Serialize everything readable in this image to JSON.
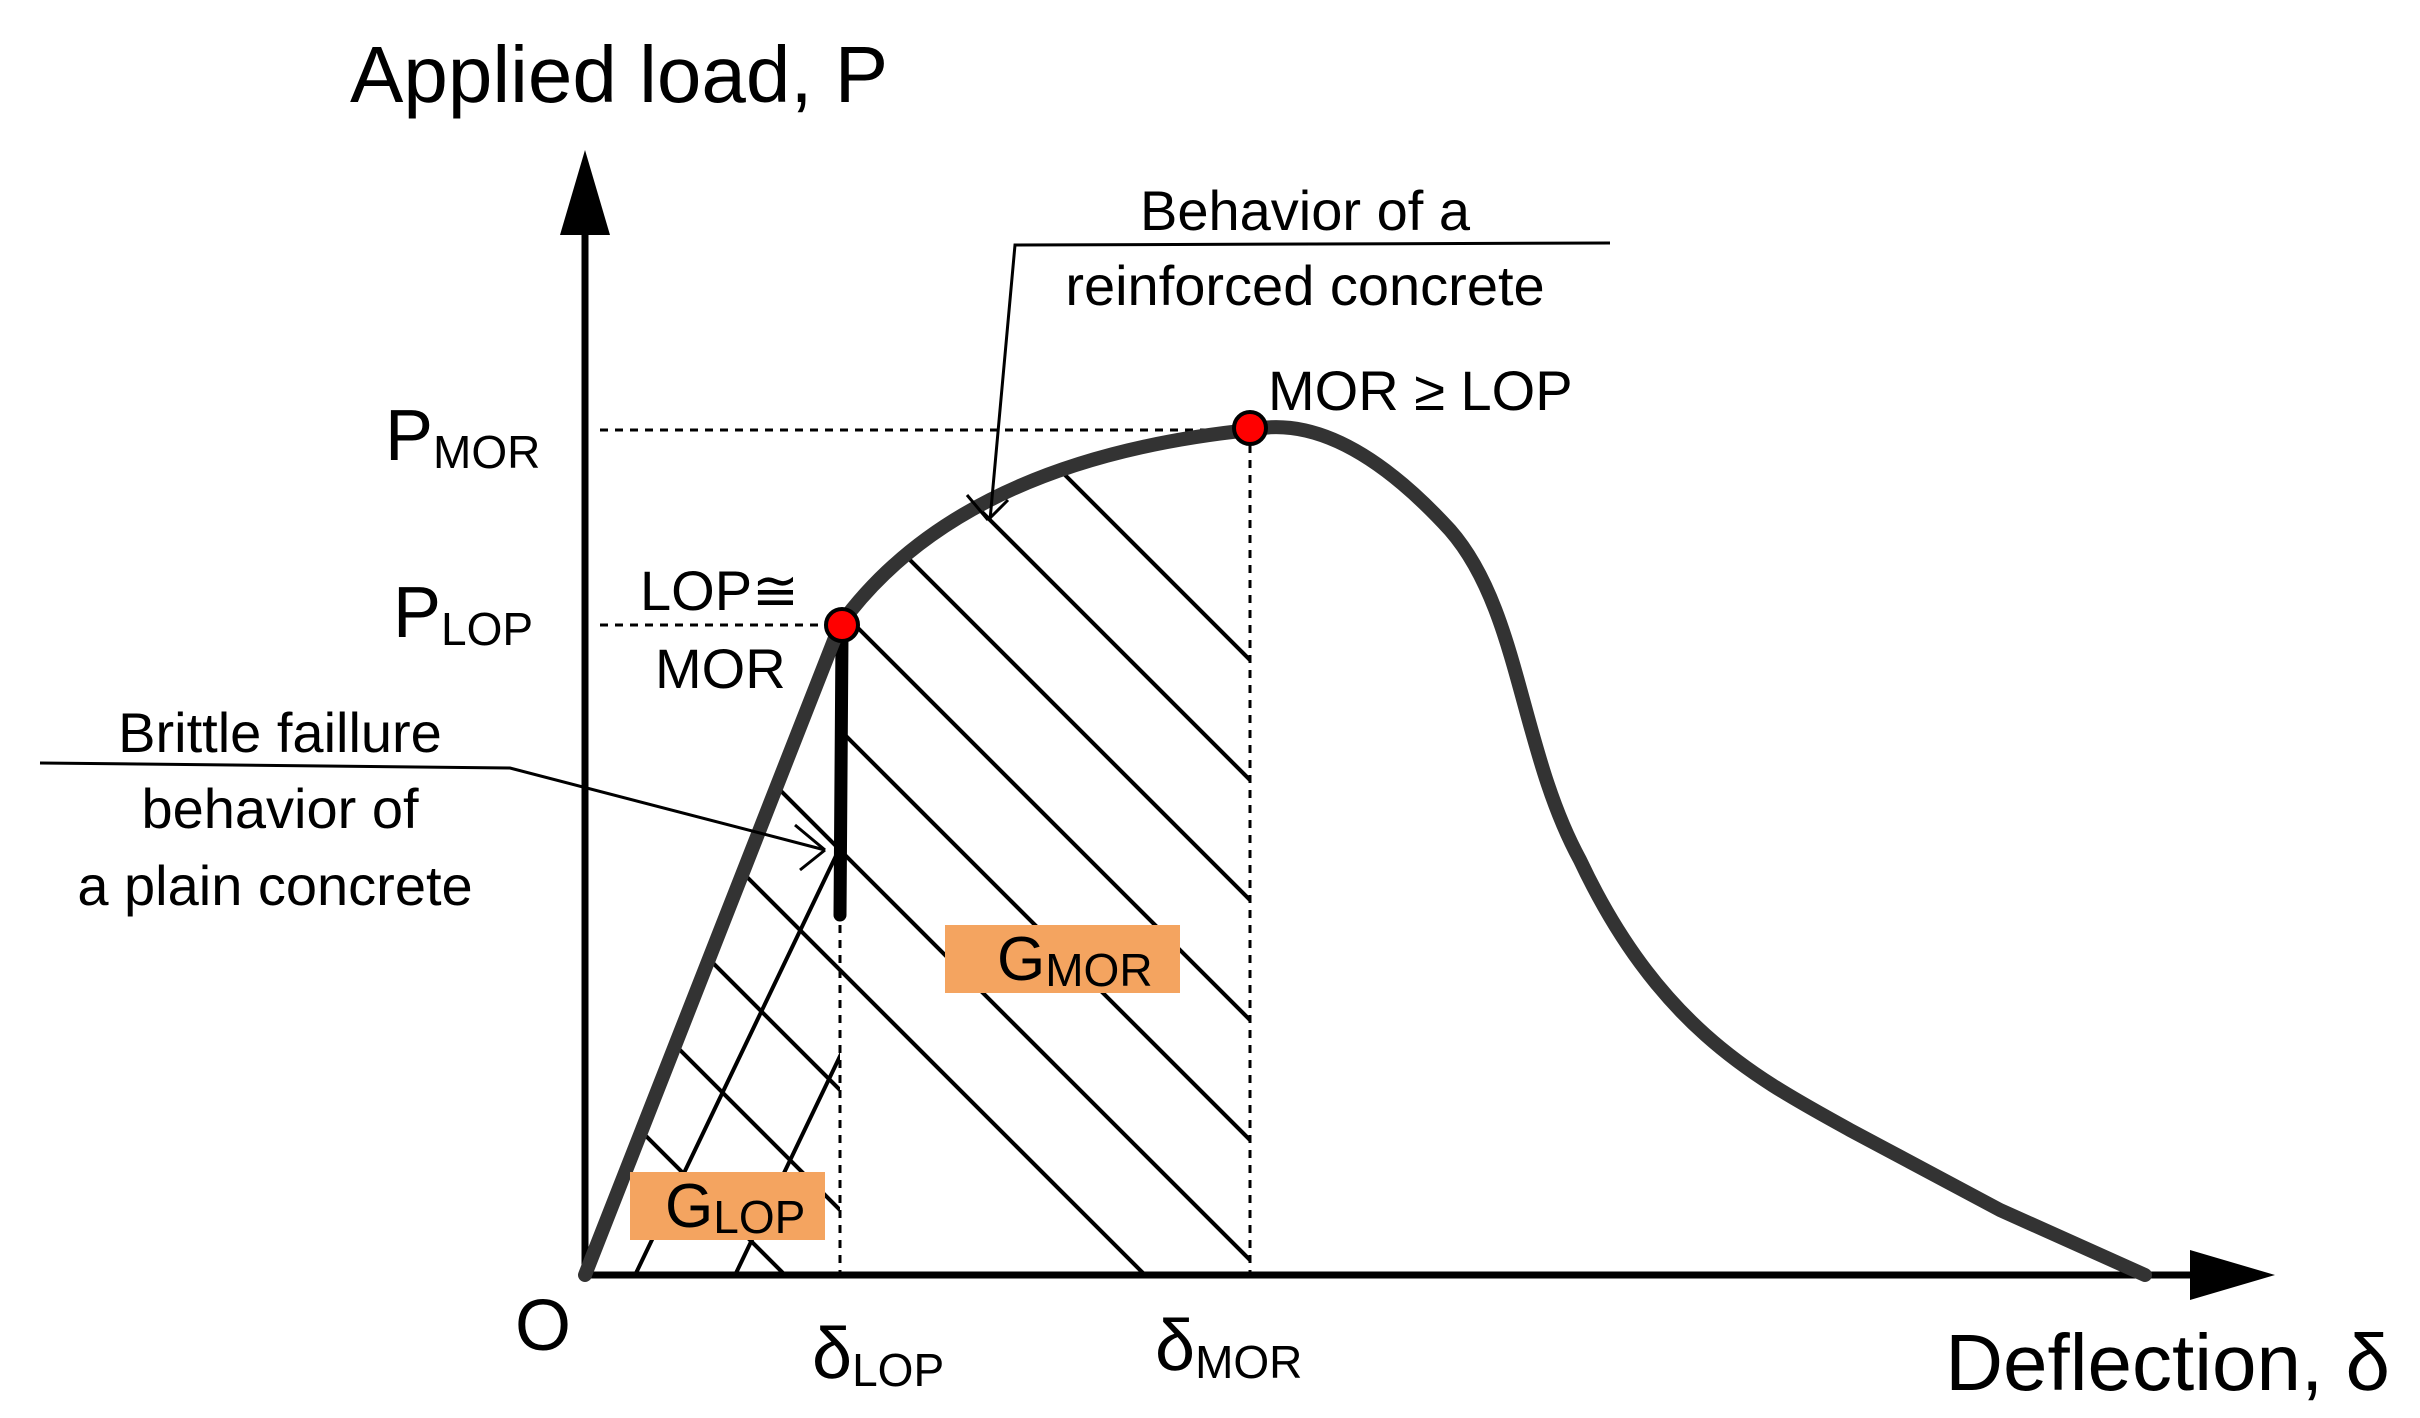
{
  "axes": {
    "y_label": "Applied load, P",
    "x_label": "Deflection, δ",
    "origin": "O"
  },
  "y_ticks": {
    "p_mor": {
      "main": "P",
      "sub": "MOR"
    },
    "p_lop": {
      "main": "P",
      "sub": "LOP"
    }
  },
  "x_ticks": {
    "d_lop": {
      "main": "δ",
      "sub": "LOP"
    },
    "d_mor": {
      "main": "δ",
      "sub": "MOR"
    }
  },
  "points": {
    "lop": {
      "line1": "LOP≅",
      "line2": "MOR"
    },
    "mor": "MOR ≥ LOP"
  },
  "callouts": {
    "reinforced": {
      "line1": "Behavior of a",
      "line2": "reinforced concrete"
    },
    "plain": {
      "line1": "Brittle faillure",
      "line2": "behavior of",
      "line3": "a plain concrete"
    }
  },
  "areas": {
    "g_lop": {
      "main": "G",
      "sub": "LOP"
    },
    "g_mor": {
      "main": "G",
      "sub": "MOR"
    }
  },
  "colors": {
    "curve": "#333333",
    "point": "#ff0000",
    "area_box": "#f4a460"
  }
}
